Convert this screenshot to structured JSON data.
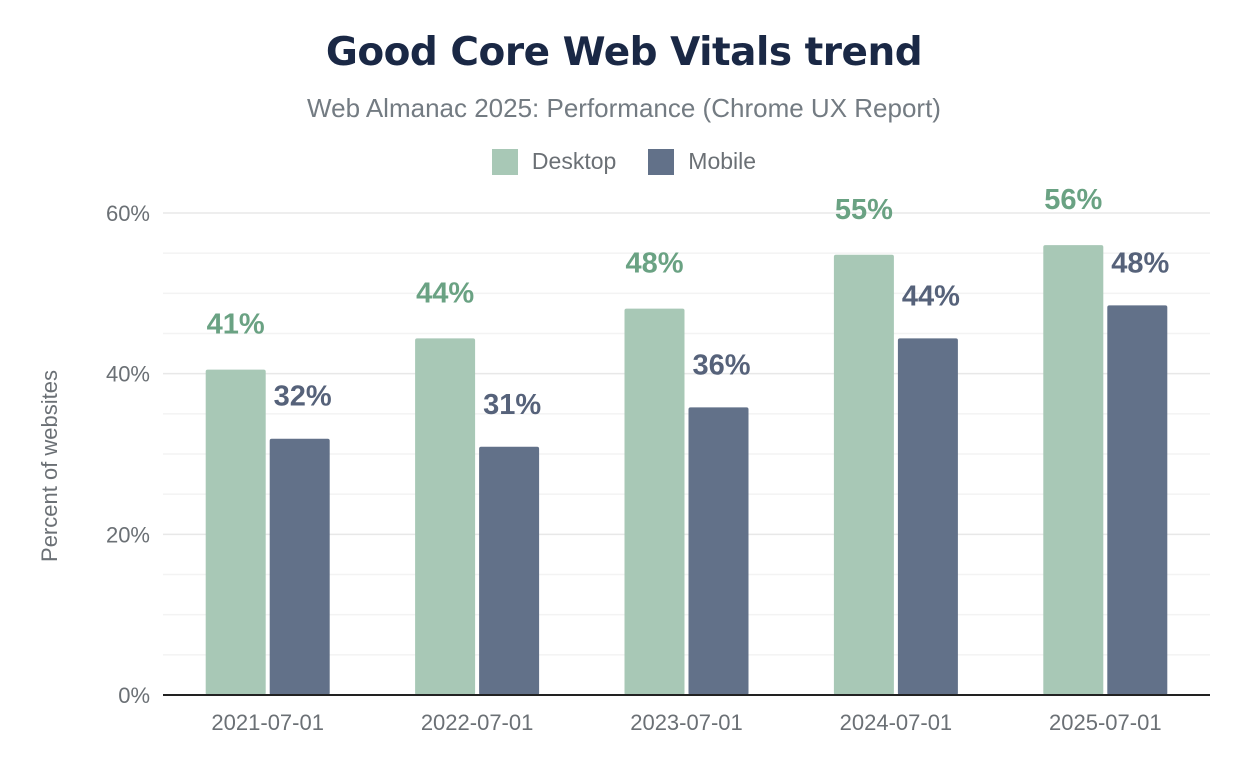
{
  "chart_data": {
    "type": "bar",
    "title": "Good Core Web Vitals trend",
    "subtitle": "Web Almanac 2025: Performance (Chrome UX Report)",
    "xlabel": "",
    "ylabel": "Percent of websites",
    "categories": [
      "2021-07-01",
      "2022-07-01",
      "2023-07-01",
      "2024-07-01",
      "2025-07-01"
    ],
    "series": [
      {
        "name": "Desktop",
        "values": [
          40.5,
          44.4,
          48.1,
          54.8,
          56.0
        ],
        "labels": [
          "41%",
          "44%",
          "48%",
          "55%",
          "56%"
        ]
      },
      {
        "name": "Mobile",
        "values": [
          31.9,
          30.9,
          35.8,
          44.4,
          48.5
        ],
        "labels": [
          "32%",
          "31%",
          "36%",
          "44%",
          "48%"
        ]
      }
    ],
    "ylim": [
      0,
      60
    ],
    "yticks": [
      0,
      20,
      40,
      60
    ],
    "ytick_labels": [
      "0%",
      "20%",
      "40%",
      "60%"
    ],
    "grid": true,
    "legend_position": "top-center"
  },
  "colors": {
    "desktop": "#a8c8b6",
    "desktop_label": "#6aa283",
    "mobile": "#627189",
    "mobile_label": "#56627a",
    "title": "#1a2845",
    "subtitle": "#737b82",
    "axis_text": "#6b7075",
    "grid_major": "#e8e8e8",
    "grid_minor": "#f3f3f3",
    "axis_line": "#222222"
  }
}
